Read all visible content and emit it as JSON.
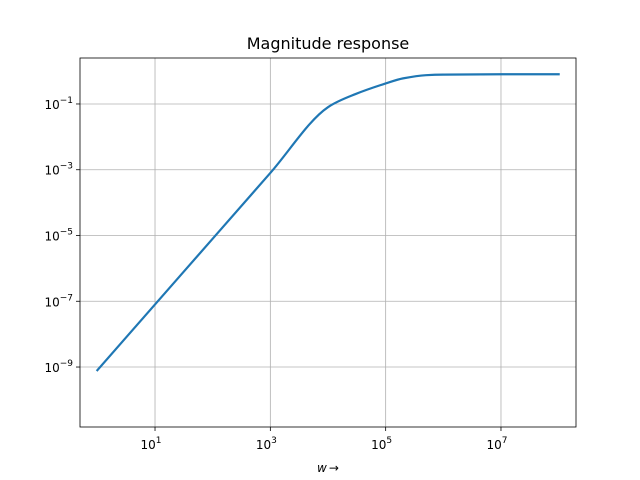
{
  "chart_data": {
    "type": "line",
    "title": "Magnitude response",
    "xlabel": "w",
    "xlabel_arrow": "→",
    "ylabel": "",
    "xscale": "log",
    "yscale": "log",
    "xlim": [
      0.5,
      200000000
    ],
    "ylim": [
      1.5e-11,
      2.5
    ],
    "grid": true,
    "x_ticks": [
      {
        "base": "10",
        "exp": "1",
        "value": 10
      },
      {
        "base": "10",
        "exp": "3",
        "value": 1000
      },
      {
        "base": "10",
        "exp": "5",
        "value": 100000
      },
      {
        "base": "10",
        "exp": "7",
        "value": 10000000
      }
    ],
    "y_ticks": [
      {
        "base": "10",
        "exp": "−1",
        "value": 0.1
      },
      {
        "base": "10",
        "exp": "−3",
        "value": 0.001
      },
      {
        "base": "10",
        "exp": "−5",
        "value": 1e-05
      },
      {
        "base": "10",
        "exp": "−7",
        "value": 1e-07
      },
      {
        "base": "10",
        "exp": "−9",
        "value": 1e-09
      }
    ],
    "series": [
      {
        "color": "#1f77b4",
        "x": [
          1,
          10,
          100,
          1000,
          10000,
          30000,
          100000,
          200000,
          500000,
          1000000,
          10000000,
          100000000
        ],
        "y": [
          8e-10,
          8e-08,
          8e-06,
          0.0008,
          0.08,
          0.2,
          0.42,
          0.6,
          0.75,
          0.78,
          0.8,
          0.8
        ]
      }
    ]
  }
}
